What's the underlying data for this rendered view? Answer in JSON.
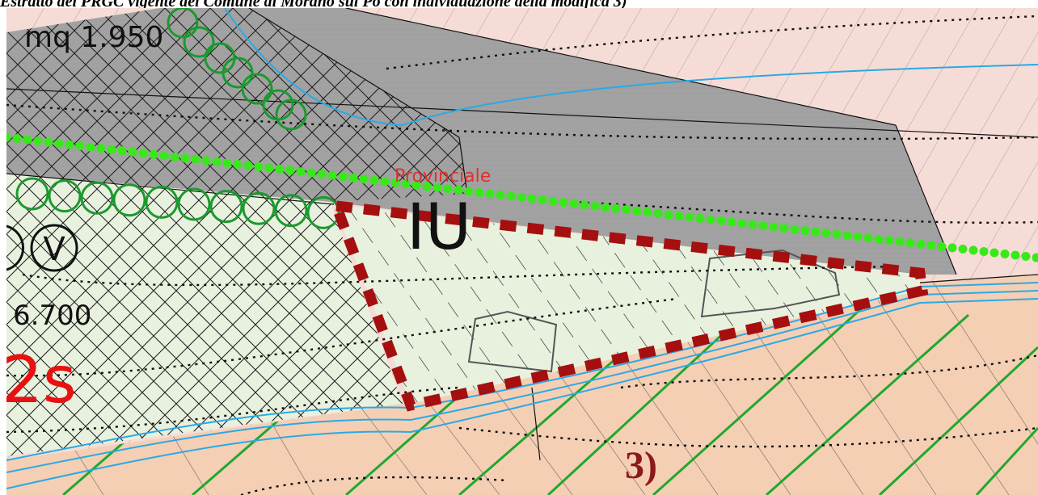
{
  "caption": "Estratto del PRGC vigente del Comune di Morano sul Po con individuazione della modifica 3)",
  "map": {
    "labels": {
      "area": "mq 1.950",
      "value": "6.700",
      "zone_code": "2s",
      "zone_iu": "IU",
      "circle_symbol": "V",
      "road_name": "Provinciale",
      "modification": "3)"
    },
    "colors": {
      "pink_zone": "#f6dcd6",
      "peach_zone": "#f4cfb4",
      "grey_zone": "#a2a2a2",
      "green_zone": "#e8f1de",
      "red_boundary": "#a50f0f",
      "green_dots": "#39e81a",
      "green_circles": "#1a9a2e",
      "blue_lines": "#2aa9e6",
      "red_text": "#e81010",
      "modification_text": "#8b1a1a"
    }
  }
}
